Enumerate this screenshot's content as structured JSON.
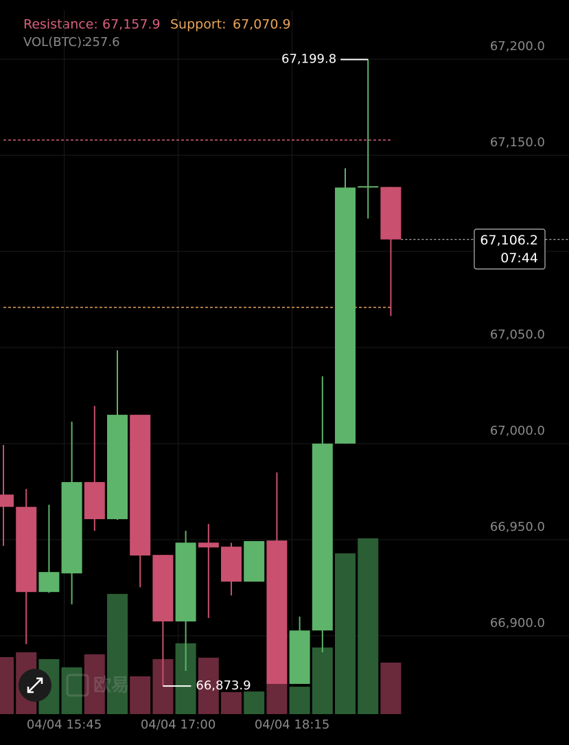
{
  "chart_data": {
    "type": "candlestick",
    "resistance": {
      "name": "Resistance:",
      "value": 67157.9,
      "label": "67,157.9",
      "color": "#d8607c"
    },
    "support": {
      "name": "Support:",
      "value": 67070.9,
      "label": "67,070.9",
      "color": "#e8a45a"
    },
    "volume_name": "VOL(BTC):",
    "categories": [
      null,
      null,
      null,
      "04/04 15:45",
      null,
      null,
      null,
      null,
      "04/04 17:00",
      null,
      null,
      null,
      null,
      "04/04 18:15",
      null,
      null,
      null,
      null
    ],
    "candles": {
      "open": [
        66973.5,
        66967.1,
        66922.8,
        66932.5,
        66980.0,
        66960.7,
        67015.0,
        66942.1,
        66907.5,
        66948.5,
        66946.4,
        66928.2,
        66949.6,
        66875.0,
        66902.8,
        67000.0,
        67133.2,
        67133.5
      ],
      "high": [
        66999.3,
        66976.4,
        66968.2,
        67011.4,
        67019.6,
        67048.5,
        67015.0,
        66942.1,
        66954.6,
        66958.2,
        66948.4,
        66949.3,
        66985.0,
        66910.0,
        67035.0,
        67143.2,
        67199.8,
        67133.5
      ],
      "low": [
        66946.8,
        66895.7,
        66922.4,
        66916.4,
        66954.6,
        66960.4,
        66925.3,
        66873.9,
        66881.8,
        66909.3,
        66921.0,
        66928.2,
        66875.0,
        66875.0,
        66891.4,
        67000.0,
        67117.1,
        67066.4
      ],
      "close": [
        66967.1,
        66922.8,
        66933.2,
        66980.0,
        66960.7,
        67015.0,
        66941.8,
        66907.5,
        66948.5,
        66946.0,
        66928.2,
        66949.3,
        66875.0,
        66902.8,
        67000.0,
        67133.2,
        67133.9,
        67106.2
      ]
    },
    "up_color": "#5db46a",
    "down_color": "#c9506f",
    "volume": {
      "values": [
        285,
        309,
        275,
        234,
        299,
        601,
        189,
        275,
        354,
        282,
        110,
        113,
        151,
        137,
        333,
        804,
        879,
        257.6
      ],
      "up_color": "#2b5e34",
      "down_color": "#6a2a3c"
    },
    "high_label": "67,199.8",
    "low_label": "66,873.9",
    "last_price_label": "67,106.2",
    "countdown": "07:44",
    "watermark": "欧易",
    "ylim": [
      66859.3,
      67225.4
    ],
    "yticks": [
      {
        "value": 66900,
        "label": "66,900.0"
      },
      {
        "value": 66950,
        "label": "66,950.0"
      },
      {
        "value": 67000,
        "label": "67,000.0"
      },
      {
        "value": 67050,
        "label": "67,050.0"
      },
      {
        "value": 67100,
        "label": "67,100.0"
      },
      {
        "value": 67150,
        "label": "67,150.0"
      },
      {
        "value": 67200,
        "label": "67,200.0"
      }
    ],
    "grid": true
  }
}
